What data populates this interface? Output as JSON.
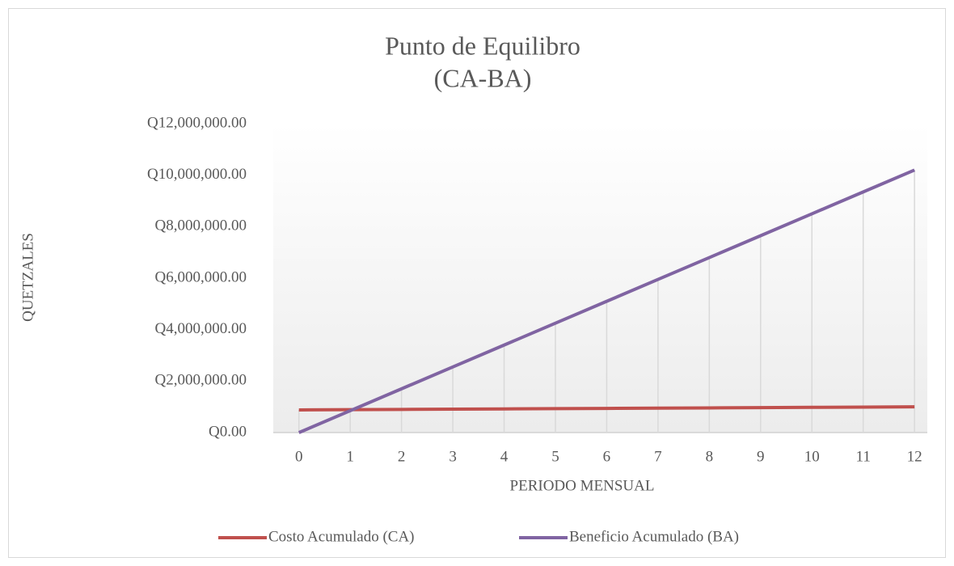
{
  "chart_data": {
    "type": "line",
    "title": "Punto de Equilibro",
    "subtitle": "(CA-BA)",
    "x_label": "PERIODO MENSUAL",
    "y_label": "QUETZALES",
    "x": [
      0,
      1,
      2,
      3,
      4,
      5,
      6,
      7,
      8,
      9,
      10,
      11,
      12
    ],
    "series": [
      {
        "name": "Costo Acumulado (CA)",
        "color": "#c0504d",
        "values": [
          880000,
          890000,
          900000,
          910000,
          920000,
          930000,
          940000,
          950000,
          960000,
          970000,
          980000,
          990000,
          1000000
        ]
      },
      {
        "name": "Beneficio Acumulado (BA)",
        "color": "#8064a2",
        "values": [
          0,
          850000,
          1700000,
          2550000,
          3400000,
          4250000,
          5100000,
          5950000,
          6800000,
          7650000,
          8500000,
          9350000,
          10200000
        ]
      }
    ],
    "xlim": [
      -0.5,
      12.25
    ],
    "xticks": [
      0,
      1,
      2,
      3,
      4,
      5,
      6,
      7,
      8,
      9,
      10,
      11,
      12
    ],
    "ylim": [
      0,
      12000000
    ],
    "yticks": [
      {
        "value": 0,
        "label": "Q0.00"
      },
      {
        "value": 2000000,
        "label": "Q2,000,000.00"
      },
      {
        "value": 4000000,
        "label": "Q4,000,000.00"
      },
      {
        "value": 6000000,
        "label": "Q6,000,000.00"
      },
      {
        "value": 8000000,
        "label": "Q8,000,000.00"
      },
      {
        "value": 10000000,
        "label": "Q10,000,000.00"
      },
      {
        "value": 12000000,
        "label": "Q12,000,000.00"
      }
    ],
    "drop_lines": true,
    "legend": "bottom"
  }
}
